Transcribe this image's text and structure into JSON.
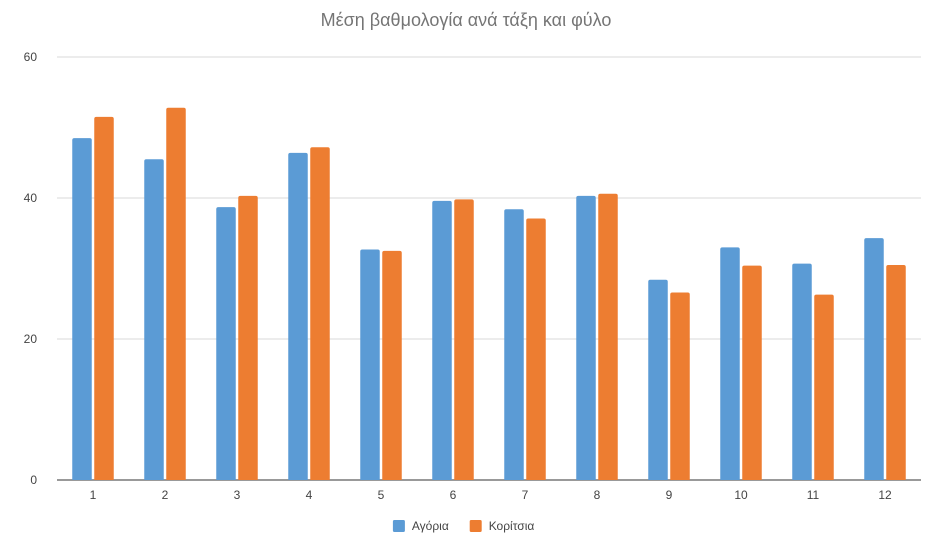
{
  "chart_data": {
    "type": "bar",
    "title": "Μέση βαθμολογία ανά τάξη και φύλο",
    "xlabel": "",
    "ylabel": "",
    "categories": [
      "1",
      "2",
      "3",
      "4",
      "5",
      "6",
      "7",
      "8",
      "9",
      "10",
      "11",
      "12"
    ],
    "series": [
      {
        "name": "Αγόρια",
        "color": "#5b9bd5",
        "values": [
          48.5,
          45.5,
          38.7,
          46.4,
          32.7,
          39.6,
          38.4,
          40.3,
          28.4,
          33.0,
          30.7,
          34.3
        ]
      },
      {
        "name": "Κορίτσια",
        "color": "#ed7d31",
        "values": [
          51.5,
          52.8,
          40.3,
          47.2,
          32.5,
          39.8,
          37.1,
          40.6,
          26.6,
          30.4,
          26.3,
          30.5
        ]
      }
    ],
    "ylim": [
      0,
      60
    ],
    "yticks": [
      0,
      20,
      40,
      60
    ],
    "grid": true,
    "legend_position": "bottom-center"
  }
}
